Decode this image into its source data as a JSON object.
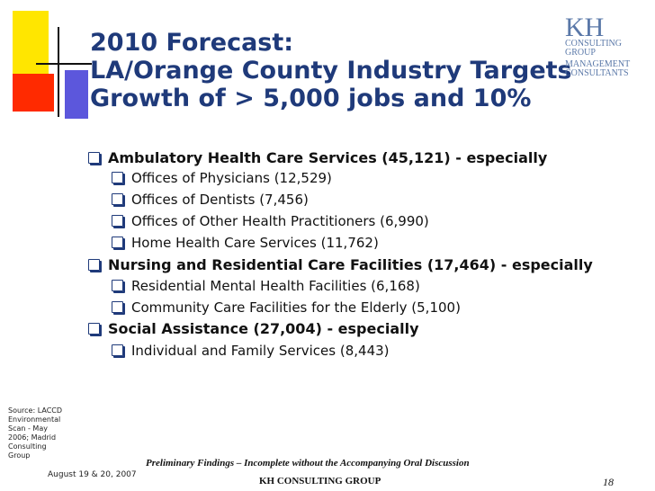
{
  "title": {
    "line1": "2010 Forecast:",
    "line2": "LA/Orange County Industry Targets",
    "line3": "Growth of > 5,000 jobs and 10%"
  },
  "logo": {
    "kh": "KH",
    "line1": "CONSULTING",
    "line2": "GROUP",
    "line3": "MANAGEMENT",
    "line4": "CONSULTANTS",
    "color": "#5a78a8"
  },
  "bullets": [
    {
      "level": 1,
      "text": "Ambulatory Health Care Services (45,121) - especially"
    },
    {
      "level": 2,
      "text": "Offices of Physicians (12,529)"
    },
    {
      "level": 2,
      "text": "Offices of Dentists (7,456)"
    },
    {
      "level": 2,
      "text": "Offices of Other Health Practitioners (6,990)"
    },
    {
      "level": 2,
      "text": "Home Health Care Services (11,762)"
    },
    {
      "level": 1,
      "text": "Nursing and Residential Care Facilities (17,464) - especially"
    },
    {
      "level": 2,
      "text": "Residential Mental Health Facilities (6,168)"
    },
    {
      "level": 2,
      "text": "Community Care Facilities for the Elderly (5,100)"
    },
    {
      "level": 1,
      "text": "Social Assistance (27,004) - especially"
    },
    {
      "level": 2,
      "text": "Individual and Family Services (8,443)"
    }
  ],
  "footer": {
    "source_l1": "Source: LACCD",
    "source_l2": "Environmental",
    "source_l3": "Scan - May",
    "source_l4": "2006; Madrid",
    "source_l5": "Consulting",
    "source_l6": "Group",
    "date": "August 19 & 20, 2007",
    "preliminary": "Preliminary Findings – Incomplete without the Accompanying Oral Discussion",
    "firm": "KH CONSULTING GROUP",
    "page_number": "18"
  },
  "colors": {
    "title": "#1f3a7a",
    "deco_yellow": "#ffe600",
    "deco_red": "#ff2a00",
    "deco_blue": "#3f3ad6"
  }
}
